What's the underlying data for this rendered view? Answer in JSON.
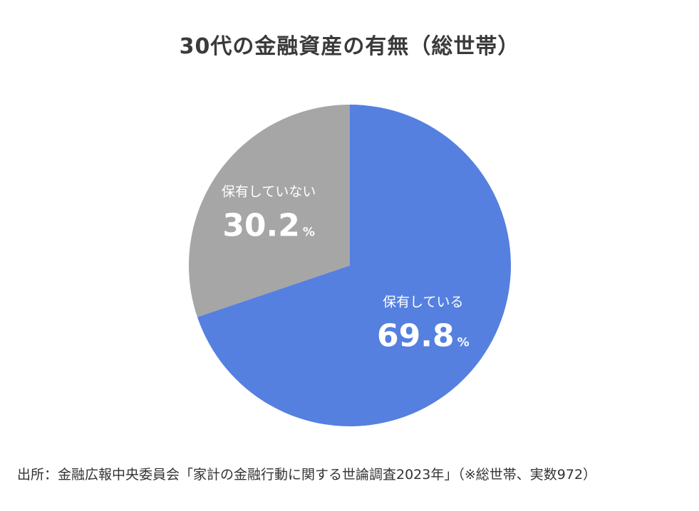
{
  "chart_data": {
    "type": "pie",
    "title": "30代の金融資産の有無（総世帯）",
    "slices": [
      {
        "label": "保有している",
        "value": 69.8,
        "value_text": "69.8",
        "unit": "%",
        "color": "#5580e0"
      },
      {
        "label": "保有していない",
        "value": 30.2,
        "value_text": "30.2",
        "unit": "%",
        "color": "#a6a6a6"
      }
    ],
    "start": "12 o'clock",
    "direction": "clockwise"
  },
  "source": "出所：金融広報中央委員会「家計の金融行動に関する世論調査2023年」（※総世帯、実数972）"
}
